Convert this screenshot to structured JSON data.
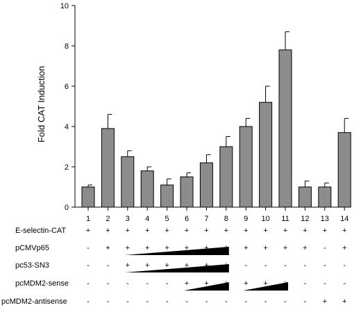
{
  "chart_data": {
    "type": "bar",
    "title": "",
    "xlabel": "",
    "ylabel": "Fold CAT Induction",
    "ylim": [
      0,
      10
    ],
    "yticks": [
      0,
      2,
      4,
      6,
      8,
      10
    ],
    "grid": false,
    "legend": "none",
    "bar_color": "#8c8c8c",
    "categories": [
      "1",
      "2",
      "3",
      "4",
      "5",
      "6",
      "7",
      "8",
      "9",
      "10",
      "11",
      "12",
      "13",
      "14"
    ],
    "values": [
      1.0,
      3.9,
      2.5,
      1.8,
      1.1,
      1.5,
      2.2,
      3.0,
      4.0,
      5.2,
      7.8,
      1.0,
      1.0,
      3.7
    ],
    "errors": [
      0.1,
      0.7,
      0.3,
      0.2,
      0.3,
      0.2,
      0.4,
      0.5,
      0.4,
      0.8,
      0.9,
      0.3,
      0.2,
      0.7
    ],
    "conditions": [
      {
        "label": "E-selectin-CAT",
        "marks": [
          "+",
          "+",
          "+",
          "+",
          "+",
          "+",
          "+",
          "+",
          "+",
          "+",
          "+",
          "+",
          "+",
          "+"
        ]
      },
      {
        "label": "pCMVp65",
        "marks": [
          "-",
          "+",
          "+",
          "+",
          "+",
          "+",
          "+",
          "+",
          "+",
          "+",
          "+",
          "+",
          "-",
          "+"
        ],
        "gradient": {
          "from": 3,
          "to": 8
        }
      },
      {
        "label": "pc53-SN3",
        "marks": [
          "-",
          "-",
          "+",
          "+",
          "+",
          "+",
          "+",
          "+",
          "-",
          "-",
          "-",
          "-",
          "-",
          "-"
        ],
        "gradient": {
          "from": 3,
          "to": 8
        }
      },
      {
        "label": "pcMDM2-sense",
        "marks": [
          "-",
          "-",
          "-",
          "-",
          "-",
          "+",
          "+",
          "+",
          "+",
          "+",
          "+",
          "-",
          "-",
          "-"
        ],
        "gradient_ranges": [
          {
            "from": 6,
            "to": 8
          },
          {
            "from": 9,
            "to": 11
          }
        ]
      },
      {
        "label": "pcMDM2-antisense",
        "marks": [
          "-",
          "-",
          "-",
          "-",
          "-",
          "-",
          "-",
          "-",
          "-",
          "-",
          "-",
          "-",
          "+",
          "+"
        ]
      }
    ]
  }
}
